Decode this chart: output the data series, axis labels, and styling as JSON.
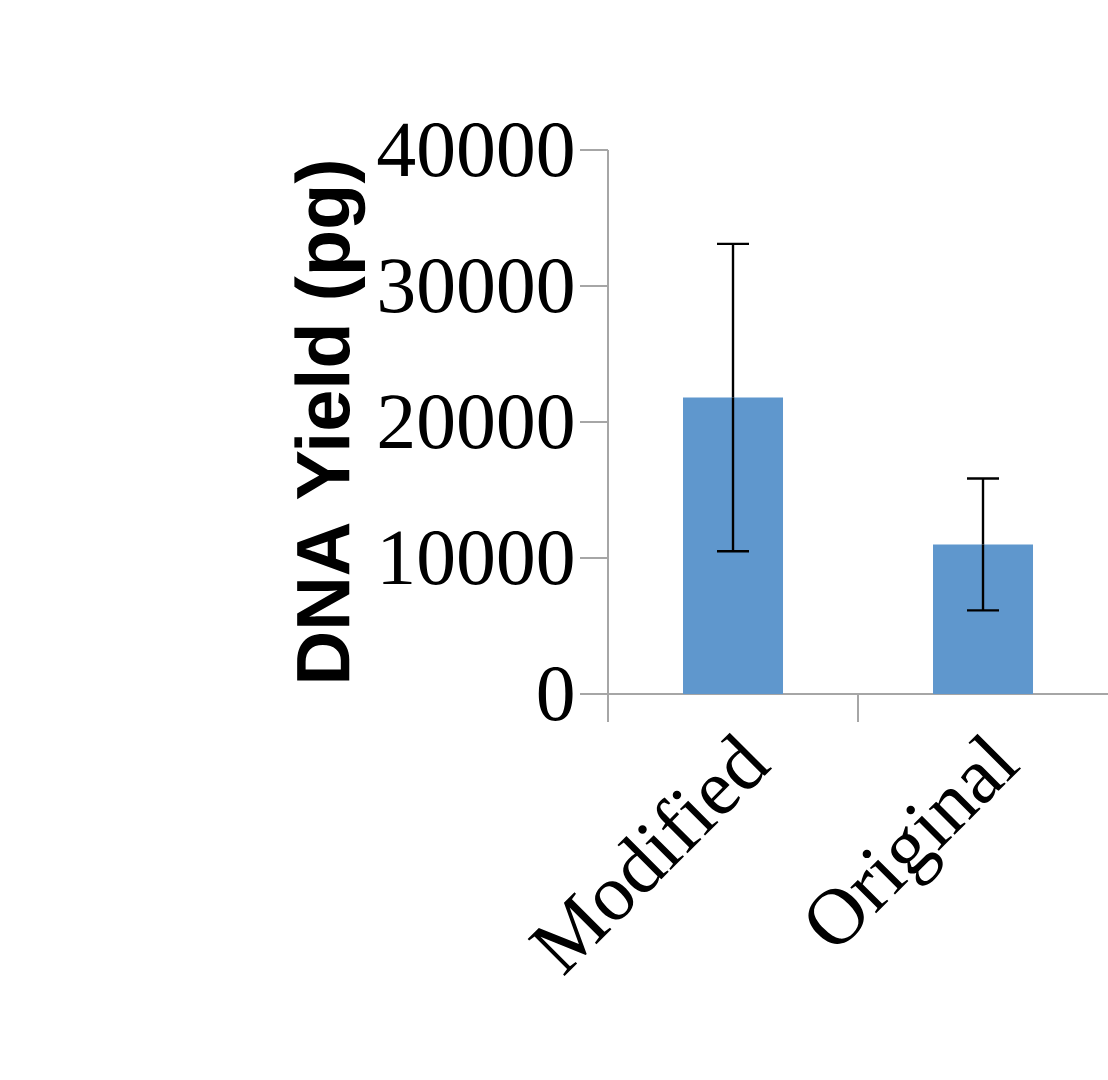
{
  "chart_data": {
    "type": "bar",
    "ylabel": "DNA Yield (pg)",
    "categories": [
      "Modified",
      "Original"
    ],
    "values": [
      21800,
      11000
    ],
    "errors": [
      11300,
      4850
    ],
    "color": "#5f97cd",
    "ylim": [
      0,
      40000
    ],
    "yticks": [
      0,
      10000,
      20000,
      30000,
      40000
    ]
  }
}
